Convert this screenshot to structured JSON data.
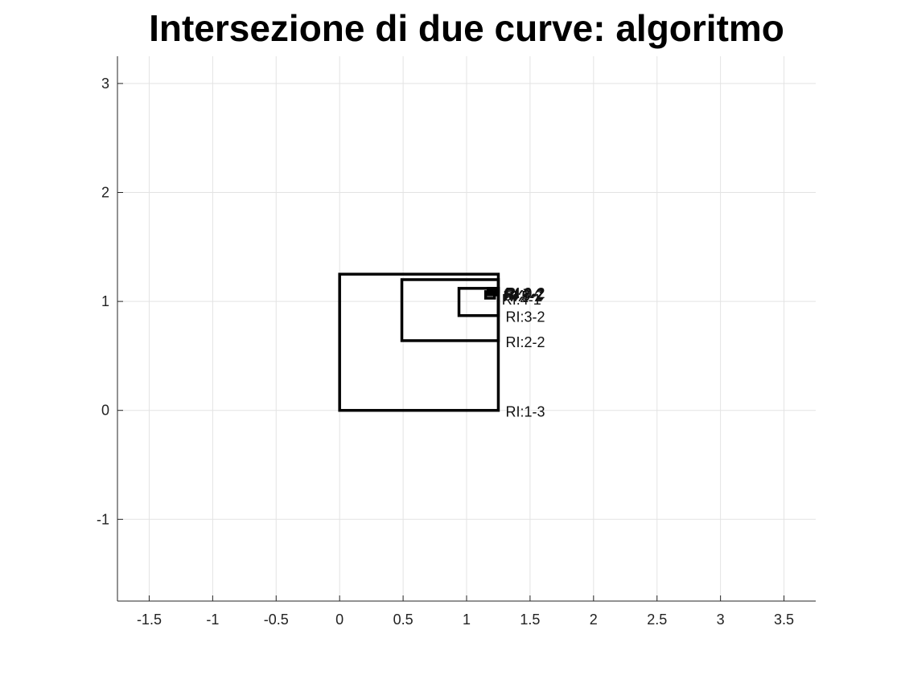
{
  "chart_data": {
    "type": "line",
    "title": "Intersezione di due curve: algoritmo",
    "xlabel": "",
    "ylabel": "",
    "xlim": [
      -1.75,
      3.75
    ],
    "ylim": [
      -1.75,
      3.25
    ],
    "grid": true,
    "xticks": [
      -1.5,
      -1,
      -0.5,
      0,
      0.5,
      1,
      1.5,
      2,
      2.5,
      3,
      3.5
    ],
    "xtick_labels": [
      "-1.5",
      "-1",
      "-0.5",
      "0",
      "0.5",
      "1",
      "1.5",
      "2",
      "2.5",
      "3",
      "3.5"
    ],
    "yticks": [
      -1,
      0,
      1,
      2,
      3
    ],
    "ytick_labels": [
      "-1",
      "0",
      "1",
      "2",
      "3"
    ],
    "rectangles": [
      {
        "label": "RI:1-3",
        "x": [
          0,
          1.25
        ],
        "y": [
          0,
          1.25
        ]
      },
      {
        "label": "RI:2-2",
        "x": [
          0.49,
          1.25
        ],
        "y": [
          0.64,
          1.2
        ]
      },
      {
        "label": "RI:3-2",
        "x": [
          0.94,
          1.25
        ],
        "y": [
          0.87,
          1.12
        ]
      },
      {
        "label": "RI:4-1",
        "x": [
          1.15,
          1.22
        ],
        "y": [
          1.03,
          1.09
        ]
      },
      {
        "label": "RI:5-2",
        "x": [
          1.17,
          1.23
        ],
        "y": [
          1.06,
          1.12
        ]
      },
      {
        "label": "RI:6-2",
        "x": [
          1.18,
          1.235
        ],
        "y": [
          1.07,
          1.115
        ]
      },
      {
        "label": "RI:7-2",
        "x": [
          1.19,
          1.24
        ],
        "y": [
          1.08,
          1.12
        ]
      },
      {
        "label": "RI:8-2",
        "x": [
          1.195,
          1.245
        ],
        "y": [
          1.085,
          1.12
        ]
      },
      {
        "label": "RI:9-2",
        "x": [
          1.2,
          1.25
        ],
        "y": [
          1.09,
          1.12
        ]
      }
    ]
  }
}
